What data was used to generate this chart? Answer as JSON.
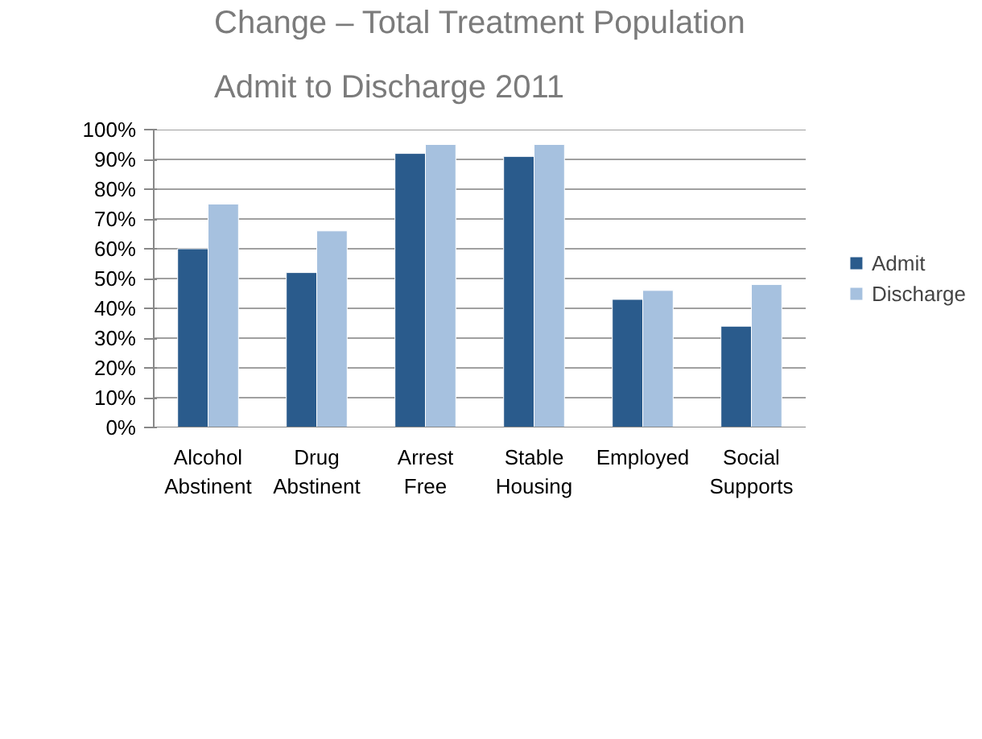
{
  "chart_data": {
    "type": "bar",
    "title": "Change – Total Treatment Population",
    "subtitle": "Admit to Discharge 2011",
    "categories": [
      "Alcohol Abstinent",
      "Drug Abstinent",
      "Arrest Free",
      "Stable Housing",
      "Employed",
      "Social Supports"
    ],
    "series": [
      {
        "name": "Admit",
        "color": "#2a5b8c",
        "values": [
          60,
          52,
          92,
          91,
          43,
          34
        ]
      },
      {
        "name": "Discharge",
        "color": "#a6c1df",
        "values": [
          75,
          66,
          95,
          95,
          46,
          48
        ]
      }
    ],
    "ylim": [
      0,
      100
    ],
    "yticks": [
      {
        "value": 0,
        "label": "0%"
      },
      {
        "value": 10,
        "label": "10%"
      },
      {
        "value": 20,
        "label": "20%"
      },
      {
        "value": 30,
        "label": "30%"
      },
      {
        "value": 40,
        "label": "40%"
      },
      {
        "value": 50,
        "label": "50%"
      },
      {
        "value": 60,
        "label": "60%"
      },
      {
        "value": 70,
        "label": "70%"
      },
      {
        "value": 80,
        "label": "80%"
      },
      {
        "value": 90,
        "label": "90%"
      },
      {
        "value": 100,
        "label": "100%"
      }
    ],
    "grid": "y",
    "legend": "right"
  }
}
